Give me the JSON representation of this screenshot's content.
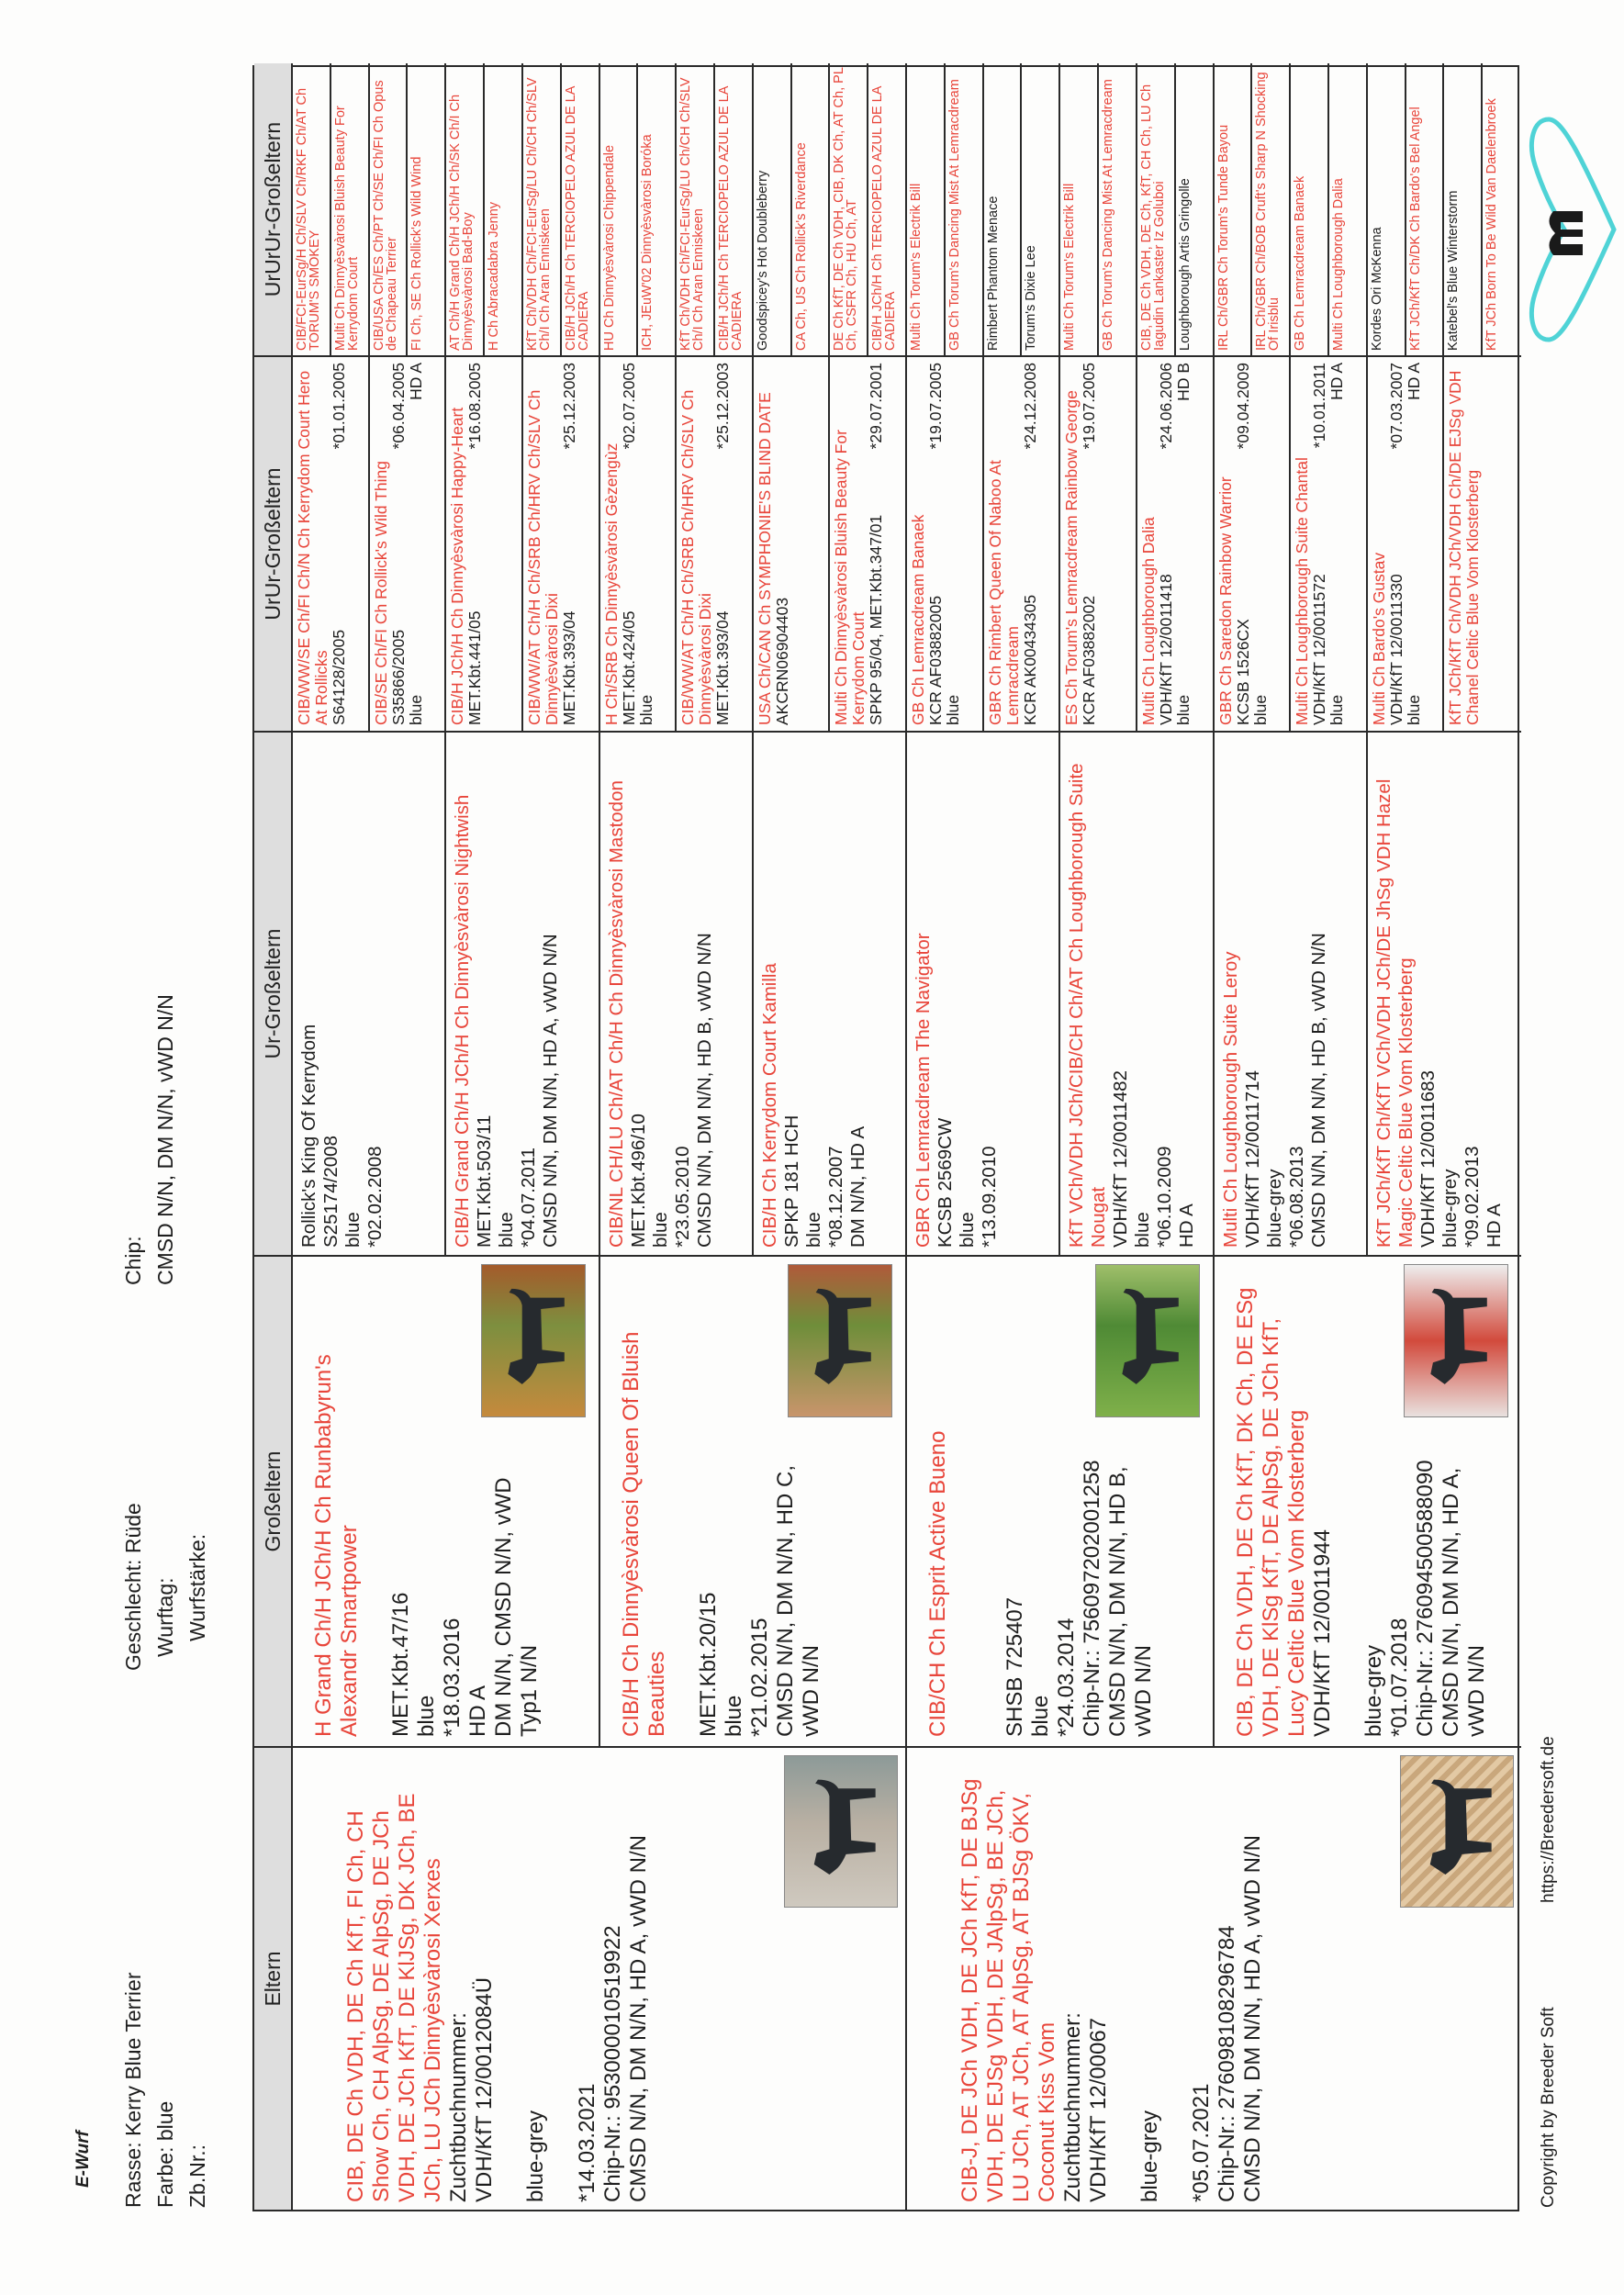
{
  "header": {
    "title": "E-Wurf",
    "rasse": "Rasse: Kerry Blue Terrier",
    "farbe": "Farbe: blue",
    "zbnr": "Zb.Nr.:",
    "geschlecht": "Geschlecht: Rüde",
    "wurftag": "Wurftag:",
    "wurfstaerke": "Wurfstärke:",
    "chip_label": "Chip:",
    "chip_value": "CMSD N/N, DM N/N, vWD N/N"
  },
  "columns": [
    "Eltern",
    "Großeltern",
    "Ur-Großeltern",
    "UrUr-Großeltern",
    "UrUrUr-Großeltern"
  ],
  "colors": {
    "titled_name": "#e8453a",
    "text": "#1e1e1e",
    "header_bg": "#dedede",
    "logo": "#4fd3d6"
  },
  "pedigree": {
    "eltern": [
      {
        "name": "CIB, DE Ch VDH, DE Ch KfT, FI Ch, CH Show Ch, CH AlpSg, DE AlpSg, DE JCh VDH, DE JCh KfT, DE KlJSg, DK JCh, BE JCh, LU JCh Dinnyèsvàrosi Xerxes",
        "red": true,
        "lines": [
          "Zuchtbuchnummer:",
          "VDH/KfT 12/0012084Ü",
          "",
          "blue-grey",
          "",
          "*14.03.2021",
          "Chip-Nr.: 953000010519922",
          "CMSD N/N, DM N/N, HD A, vWD N/N"
        ]
      },
      {
        "name": "CIB-J, DE JCh VDH, DE JCh KfT, DE BJSg VDH, DE EJSg VDH, DE JAlpSg, BE JCh, LU JCh, AT JCh, AT AlpSg, AT BJSg ÖKV,  Coconut Kiss Vom",
        "red": true,
        "lines": [
          "Zuchtbuchnummer:",
          "VDH/KfT 12/00067",
          "",
          "blue-grey",
          "",
          "*05.07.2021",
          "Chip-Nr.: 276098108296784",
          "CMSD N/N, DM N/N, HD A, vWD N/N"
        ]
      }
    ],
    "grosseltern": [
      {
        "name": "H Grand Ch/H JCh/H Ch Runbabyrun's Alexandr Smartpower",
        "red": true,
        "lines": [
          "",
          "MET.Kbt.47/16",
          "blue",
          "*18.03.2016",
          "HD A",
          "DM N/N, CMSD N/N, vWD",
          "Typ1 N/N"
        ]
      },
      {
        "name": "CIB/H Ch Dinnyèsvàrosi Queen Of Bluish Beauties",
        "red": true,
        "lines": [
          "",
          "MET.Kbt.20/15",
          "blue",
          "*21.02.2015",
          "CMSD N/N, DM N/N, HD C,",
          "vWD N/N"
        ]
      },
      {
        "name": "CIB/CH Ch Esprit Active Bueno",
        "red": true,
        "lines": [
          "",
          "",
          "SHSB 725407",
          "blue",
          "*24.03.2014",
          "Chip-Nr.: 756097202001258",
          "CMSD N/N, DM N/N, HD B,",
          "vWD N/N"
        ]
      },
      {
        "name": "CIB, DE Ch VDH, DE Ch KfT, DK Ch, DE ESg VDH, DE KlSg KfT, DE AlpSg, DE JCh KfT, Lucy Celtic Blue Vom Klosterberg",
        "red": true,
        "lines": [
          "VDH/KfT 12/0011944",
          "",
          "blue-grey",
          "*01.07.2018",
          "Chip-Nr.: 276094500588090",
          "CMSD N/N, DM N/N, HD A,",
          "vWD N/N"
        ]
      }
    ],
    "urgrosseltern": [
      {
        "name": "Rollick's King Of Kerrydom",
        "red": false,
        "lines": [
          "S25174/2008",
          "blue",
          "*02.02.2008"
        ]
      },
      {
        "name": "CIB/H Grand Ch/H JCh/H Ch Dinnyèsvàrosi Nightwish",
        "red": true,
        "lines": [
          "MET.Kbt.503/11",
          "blue",
          "*04.07.2011",
          "CMSD N/N, DM N/N, HD A, vWD N/N"
        ]
      },
      {
        "name": "CIB/NL CH/LU Ch/AT Ch/H Ch Dinnyèsvàrosi Mastodon",
        "red": true,
        "lines": [
          "MET.Kbt.496/10",
          "blue",
          "*23.05.2010",
          "CMSD N/N, DM N/N, HD B, vWD N/N"
        ]
      },
      {
        "name": "CIB/H Ch Kerrydom Court Kamilla",
        "red": true,
        "lines": [
          "SPKP 181 HCH",
          "blue",
          "*08.12.2007",
          "DM N/N, HD A"
        ]
      },
      {
        "name": "GBR Ch Lemracdream  The Navigator",
        "red": true,
        "lines": [
          "KCSB 2569CW",
          "blue",
          "*13.09.2010"
        ]
      },
      {
        "name": "KfT VCh/VDH JCh/CIB/CH Ch/AT Ch Loughborough Suite Nougat",
        "red": true,
        "lines": [
          "VDH/KfT 12/0011482",
          "blue",
          "*06.10.2009",
          "HD A"
        ]
      },
      {
        "name": "Multi Ch Loughborough Suite Leroy",
        "red": true,
        "lines": [
          "VDH/KfT 12/0011714",
          "blue-grey",
          "*06.08.2013",
          "CMSD N/N, DM N/N, HD B, vWD N/N"
        ]
      },
      {
        "name": "KfT JCh/KfT Ch/KfT VCh/VDH JCh/DE JhSg VDH Hazel Magic Celtic Blue Vom Klosterberg",
        "red": true,
        "lines": [
          "VDH/KfT 12/0011683",
          "blue-grey",
          "*09.02.2013",
          "HD A"
        ]
      }
    ],
    "ururgrosseltern": [
      {
        "name": "CIB/WW/SE Ch/FI Ch/N Ch Kerrydom Court Hero At Rollicks",
        "red": true,
        "reg": "S64128/2005",
        "date": "*01.01.2005",
        "color": "",
        "hd": ""
      },
      {
        "name": "CIB/SE Ch/FI Ch Rollick's Wild Thing",
        "red": true,
        "reg": "S35866/2005",
        "date": "*06.04.2005",
        "color": "blue",
        "hd": "HD A"
      },
      {
        "name": "CIB/H JCh/H Ch Dinnyèsvàrosi Happy-Heart",
        "red": true,
        "reg": "MET.Kbt.441/05",
        "date": "*16.08.2005",
        "color": "",
        "hd": ""
      },
      {
        "name": "CIB/WW/AT Ch/H Ch/SRB Ch/HRV Ch/SLV Ch Dinnyèsvàrosi Dixi",
        "red": true,
        "reg": "MET.Kbt.393/04",
        "date": "*25.12.2003",
        "color": "",
        "hd": ""
      },
      {
        "name": "H Ch/SRB Ch Dinnyèsvàrosi Gèzengùz",
        "red": true,
        "reg": "MET.Kbt.424/05",
        "date": "*02.07.2005",
        "color": "blue",
        "hd": ""
      },
      {
        "name": "CIB/WW/AT Ch/H Ch/SRB Ch/HRV Ch/SLV Ch Dinnyèsvàrosi Dixi",
        "red": true,
        "reg": "MET.Kbt.393/04",
        "date": "*25.12.2003",
        "color": "",
        "hd": ""
      },
      {
        "name": "USA Ch/CAN Ch SYMPHONIE'S BLIND DATE",
        "red": true,
        "reg": "AKCRN06904403",
        "date": "",
        "color": "",
        "hd": ""
      },
      {
        "name": "Multi Ch Dinnyèsvàrosi Bluish Beauty For Kerrydom Court",
        "red": true,
        "reg": "SPKP 95/04, MET.Kbt.347/01",
        "date": "*29.07.2001",
        "color": "",
        "hd": ""
      },
      {
        "name": "GB Ch Lemracdream Banaek",
        "red": true,
        "reg": "KCR AF03882005",
        "date": "*19.07.2005",
        "color": "blue",
        "hd": ""
      },
      {
        "name": "GBR Ch Rimbert Queen Of Naboo At Lemracdream",
        "red": true,
        "reg": "KCR AK00434305",
        "date": "*24.12.2008",
        "color": "",
        "hd": ""
      },
      {
        "name": "ES Ch Torum's Lemracdream Rainbow George",
        "red": true,
        "reg": "KCR AF03882002",
        "date": "*19.07.2005",
        "color": "",
        "hd": ""
      },
      {
        "name": "Multi Ch Loughborough Dalia",
        "red": true,
        "reg": "VDH/KfT 12/0011418",
        "date": "*24.06.2006",
        "color": "blue",
        "hd": "HD B"
      },
      {
        "name": "GBR Ch Saredon Rainbow Warrior",
        "red": true,
        "reg": "KCSB 1526CX",
        "date": "*09.04.2009",
        "color": "blue",
        "hd": ""
      },
      {
        "name": "Multi Ch Loughborough Suite Chantal",
        "red": true,
        "reg": "VDH/KfT 12/0011572",
        "date": "*10.01.2011",
        "color": "blue",
        "hd": "HD A"
      },
      {
        "name": "Multi Ch Bardo's Gustav",
        "red": true,
        "reg": "VDH/KfT 12/0011330",
        "date": "*07.03.2007",
        "color": "blue",
        "hd": "HD A"
      },
      {
        "name": "KfT JCh/KfT Ch/VDH JCh/VDH Ch/DE EJSg VDH Chanel Celtic Blue Vom Klosterberg",
        "red": true,
        "reg": "",
        "date": "",
        "color": "",
        "hd": ""
      }
    ],
    "urururgrosseltern": [
      {
        "name": "CIB/FCI-EurSg/H Ch/SLV Ch/RKF Ch/AT Ch TORUM'S SMOKEY",
        "red": true
      },
      {
        "name": "Multi Ch Dinnyèsvàrosi Bluish Beauty For Kerrydom Court",
        "red": true
      },
      {
        "name": "CIB/USA Ch/ES Ch/PT Ch/SE Ch/FI Ch Opus de Chapeau Terrier",
        "red": true
      },
      {
        "name": "FI Ch, SE Ch Rollick's Wild Wind",
        "red": true
      },
      {
        "name": "AT Ch/H Grand Ch/H JCh/H Ch/SK Ch/I Ch Dinnyèsvàrosi Bad-Boy",
        "red": true
      },
      {
        "name": "H Ch Abracadabra Jenny",
        "red": true
      },
      {
        "name": "KfT Ch/VDH Ch/FCI-EurSg/LU Ch/CH Ch/SLV Ch/I Ch Aran Enniskeen",
        "red": true
      },
      {
        "name": "CIB/H JCh/H Ch TERCIOPELO AZUL DE LA CADIERA",
        "red": true
      },
      {
        "name": "HU Ch Dinnyèsvàrosi Chippendale",
        "red": true
      },
      {
        "name": "ICH, JEuW'02 Dinnyèsvàrosi Borόka",
        "red": true
      },
      {
        "name": "KfT Ch/VDH Ch/FCI-EurSg/LU Ch/CH Ch/SLV Ch/I Ch Aran Enniskeen",
        "red": true
      },
      {
        "name": "CIB/H JCh/H Ch TERCIOPELO AZUL DE LA CADIERA",
        "red": true
      },
      {
        "name": "Goodspicey's Hot Doubleberry",
        "red": false
      },
      {
        "name": "CA Ch, US Ch Rollick's Riverdance",
        "red": true
      },
      {
        "name": "DE Ch KfT, DE Ch VDH, CIB, DK Ch, AT Ch, PL Ch, CSFR Ch, HU Ch, AT",
        "red": true
      },
      {
        "name": "CIB/H JCh/H Ch TERCIOPELO AZUL DE LA CADIERA",
        "red": true
      },
      {
        "name": "Multi Ch Torum's Electrik Bill",
        "red": true
      },
      {
        "name": "GB Ch Torum's Dancing Mist At Lemracdream",
        "red": true
      },
      {
        "name": "Rimbert Phantom Menace",
        "red": false
      },
      {
        "name": "Torum's Dixie Lee",
        "red": false
      },
      {
        "name": "Multi Ch Torum's Electrik Bill",
        "red": true
      },
      {
        "name": "GB Ch Torum's Dancing Mist At Lemracdream",
        "red": true
      },
      {
        "name": "CIB, DE Ch VDH, DE Ch, KfT, CH Ch, LU Ch Iagudin Lankaster Iz Goluboi",
        "red": true
      },
      {
        "name": "Loughborough Artis Gringolle",
        "red": false
      },
      {
        "name": "IRL Ch/GBR Ch Torum's Tunde Bayou",
        "red": true
      },
      {
        "name": "IRL Ch/GBR Ch/BOB Cruft's Sharp N Shocking Of Irisblu",
        "red": true
      },
      {
        "name": "GB Ch Lemracdream Banaek",
        "red": true
      },
      {
        "name": "Multi Ch Loughborough Dalia",
        "red": true
      },
      {
        "name": "Kordes Ori McKenna",
        "red": false
      },
      {
        "name": "KfT JCh/KfT Ch/DK Ch Bardo's Bel Angel",
        "red": true
      },
      {
        "name": "Katebel's Blue Winterstorm",
        "red": false
      },
      {
        "name": "KfT JCh Born To Be Wild Van Daelenbroek",
        "red": true
      }
    ]
  },
  "footer": {
    "copyright": "Copyright by Breeder Soft",
    "url": "https://Breedersoft.de"
  }
}
